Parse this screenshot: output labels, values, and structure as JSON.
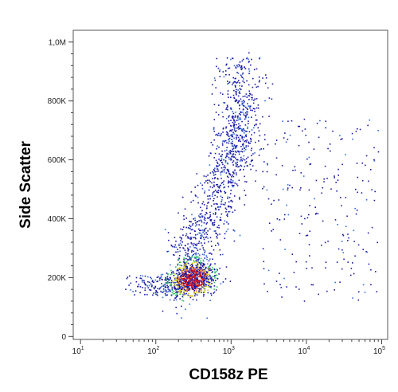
{
  "chart_data": {
    "type": "scatter",
    "style": "density dot plot",
    "xlabel": "CD158z PE",
    "ylabel": "Side Scatter",
    "x_scale": "log",
    "xlim": [
      8,
      120000
    ],
    "ylim": [
      -10000,
      1040000
    ],
    "x_ticks": [
      {
        "value": 10,
        "base": "10",
        "exp": "1"
      },
      {
        "value": 100,
        "base": "10",
        "exp": "2"
      },
      {
        "value": 1000,
        "base": "10",
        "exp": "3"
      },
      {
        "value": 10000,
        "base": "10",
        "exp": "4"
      },
      {
        "value": 100000,
        "base": "10",
        "exp": "5"
      }
    ],
    "y_ticks": [
      {
        "value": 0,
        "label": "0"
      },
      {
        "value": 200000,
        "label": "200K"
      },
      {
        "value": 400000,
        "label": "400K"
      },
      {
        "value": 600000,
        "label": "600K"
      },
      {
        "value": 800000,
        "label": "800K"
      },
      {
        "value": 1000000,
        "label": "1,0M"
      }
    ],
    "density_colors": [
      "#1a1aa8",
      "#2f6fd8",
      "#2fbf6a",
      "#d8d030",
      "#e07020",
      "#d81818"
    ],
    "populations": [
      {
        "name": "main",
        "x": [
          [
            150,
            1400,
            5,
            180
          ],
          [
            1400,
            4500,
            5,
            35
          ]
        ],
        "y_center": 200000,
        "y_spread": 30000
      },
      {
        "name": "core",
        "x_center": 300,
        "y_center": 200000,
        "note": "highest density"
      },
      {
        "name": "tail",
        "x_range": [
          600,
          3500
        ],
        "y_range": [
          250000,
          950000
        ]
      },
      {
        "name": "sparse",
        "x_range": [
          3000,
          90000
        ],
        "y_range": [
          120000,
          800000
        ]
      }
    ],
    "grid": false,
    "legend": "none"
  }
}
